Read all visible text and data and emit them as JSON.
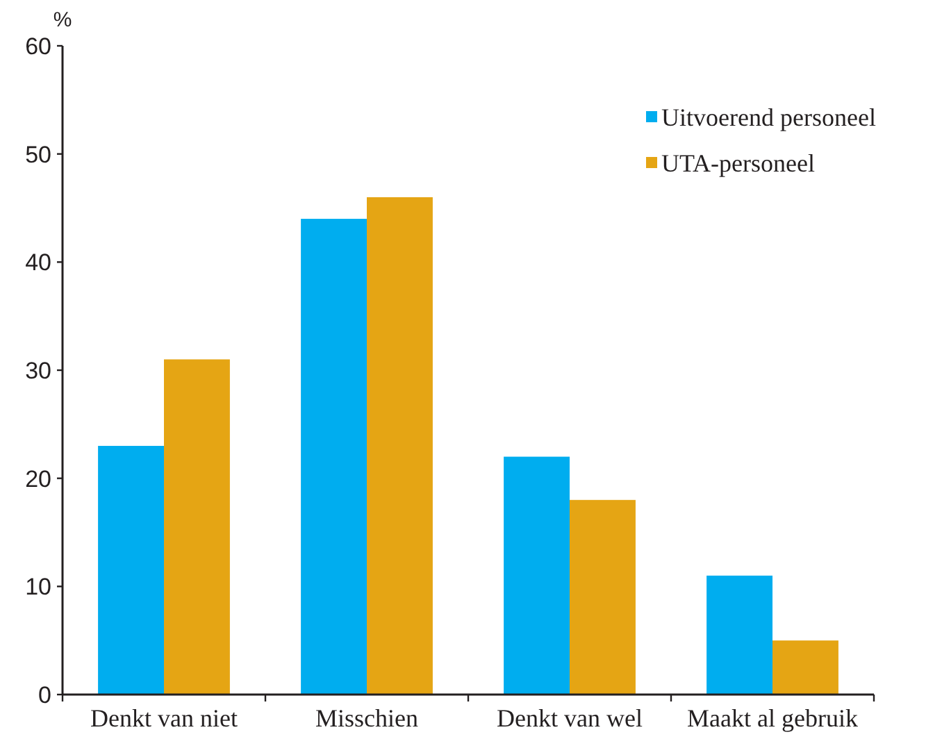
{
  "chart_data": {
    "type": "bar",
    "ylabel": "%",
    "categories": [
      "Denkt van niet",
      "Misschien",
      "Denkt van wel",
      "Maakt al gebruik"
    ],
    "series": [
      {
        "name": "Uitvoerend personeel",
        "color": "#00adef",
        "values": [
          23,
          44,
          22,
          11
        ]
      },
      {
        "name": "UTA-personeel",
        "color": "#e5a514",
        "values": [
          31,
          46,
          18,
          5
        ]
      }
    ],
    "ylim": [
      0,
      60
    ],
    "yticks": [
      0,
      10,
      20,
      30,
      40,
      50,
      60
    ],
    "grid": false,
    "legend": "top right"
  }
}
